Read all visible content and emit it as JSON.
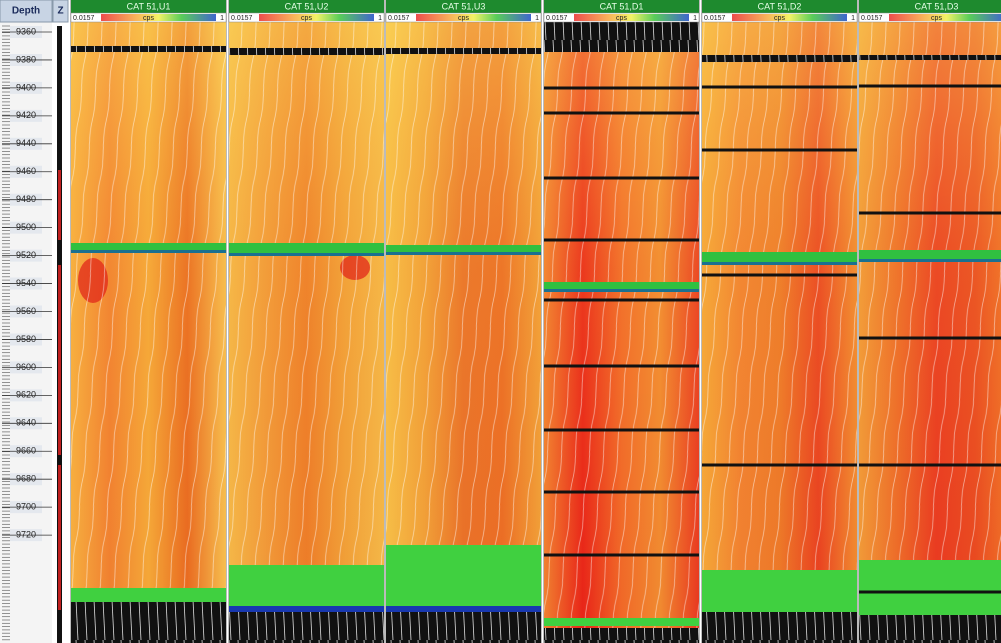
{
  "depth_track": {
    "header": "Depth",
    "labels": [
      9360,
      9380,
      9400,
      9420,
      9440,
      9460,
      9480,
      9500,
      9520,
      9540,
      9560,
      9580,
      9600,
      9620,
      9640,
      9660,
      9680,
      9700,
      9720
    ]
  },
  "z_track": {
    "header": "Z"
  },
  "tracks": [
    {
      "title": "CAT 51,U1",
      "scale_min": 0.0157,
      "unit": "cps",
      "scale_max": 1
    },
    {
      "title": "CAT 51,U2",
      "scale_min": 0.0157,
      "unit": "cps",
      "scale_max": 1
    },
    {
      "title": "CAT 51,U3",
      "scale_min": 0.0157,
      "unit": "cps",
      "scale_max": 1
    },
    {
      "title": "CAT 51,D1",
      "scale_min": 0.0157,
      "unit": "cps",
      "scale_max": 1
    },
    {
      "title": "CAT 51,D2",
      "scale_min": 0.0157,
      "unit": "cps",
      "scale_max": 1
    },
    {
      "title": "CAT 51,D3",
      "scale_min": 0.0157,
      "unit": "cps",
      "scale_max": 1
    }
  ]
}
